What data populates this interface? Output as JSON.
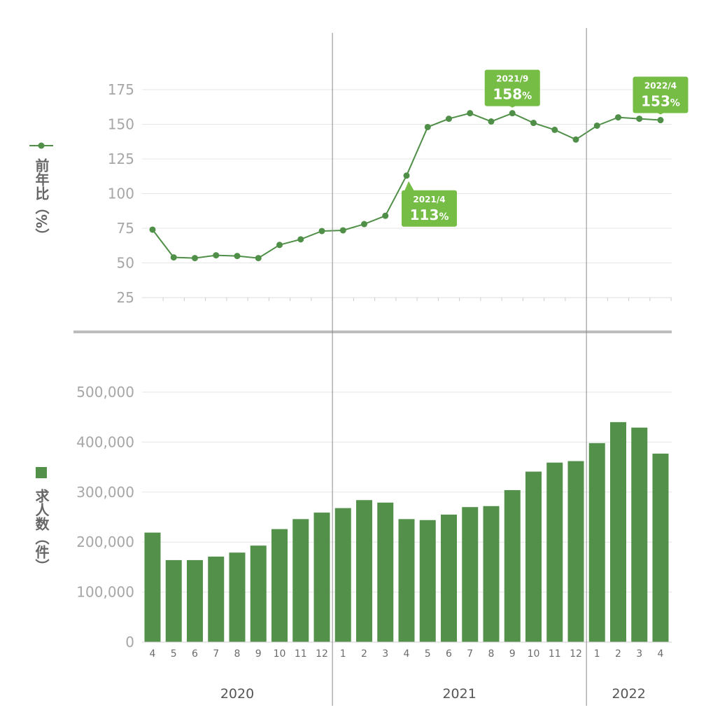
{
  "chart_data": [
    {
      "type": "line",
      "name": "yoy-ratio",
      "ylabel": "前年比（%）",
      "legend": "left",
      "grid": true,
      "ylim": [
        25,
        185
      ],
      "yticks": [
        25,
        50,
        75,
        100,
        125,
        150,
        175
      ],
      "ytick_labels": [
        "25",
        "50",
        "75",
        "100",
        "125",
        "150",
        "175"
      ],
      "color": "#4f8f47",
      "values": [
        74,
        54,
        53.5,
        55.5,
        55,
        53.5,
        63,
        67,
        73,
        73.5,
        78,
        84,
        113,
        148,
        154,
        158,
        152,
        158,
        151,
        146,
        139,
        149,
        155,
        154,
        153
      ],
      "callouts": [
        {
          "index": 12,
          "date": "2021/4",
          "value": "113",
          "unit": "%",
          "position": "below"
        },
        {
          "index": 17,
          "date": "2021/9",
          "value": "158",
          "unit": "%",
          "position": "above"
        },
        {
          "index": 24,
          "date": "2022/4",
          "value": "153",
          "unit": "%",
          "position": "above"
        }
      ]
    },
    {
      "type": "bar",
      "name": "job-openings",
      "ylabel": "求人数（件）",
      "legend": "left",
      "grid": true,
      "ylim": [
        0,
        520000
      ],
      "yticks": [
        0,
        100000,
        200000,
        300000,
        400000,
        500000
      ],
      "ytick_labels": [
        "0",
        "100,000",
        "200,000",
        "300,000",
        "400,000",
        "500,000"
      ],
      "color": "#53914a",
      "values": [
        219000,
        164000,
        164000,
        171000,
        179000,
        193000,
        226000,
        246000,
        259000,
        268000,
        284000,
        279000,
        246000,
        244000,
        255000,
        270000,
        272000,
        304000,
        341000,
        359000,
        362000,
        398000,
        440000,
        429000,
        377000
      ]
    }
  ],
  "x_axis": {
    "categories": [
      "4",
      "5",
      "6",
      "7",
      "8",
      "9",
      "10",
      "11",
      "12",
      "1",
      "2",
      "3",
      "4",
      "5",
      "6",
      "7",
      "8",
      "9",
      "10",
      "11",
      "12",
      "1",
      "2",
      "3",
      "4"
    ],
    "years": [
      {
        "label": "2020",
        "start": 0,
        "end": 8
      },
      {
        "label": "2021",
        "start": 9,
        "end": 20
      },
      {
        "label": "2022",
        "start": 21,
        "end": 24
      }
    ]
  },
  "colors": {
    "callout": "#76bd45",
    "grid": "#e6e6e6",
    "divider": "#bdbdbd",
    "year_separator": "#8a8a8a"
  }
}
